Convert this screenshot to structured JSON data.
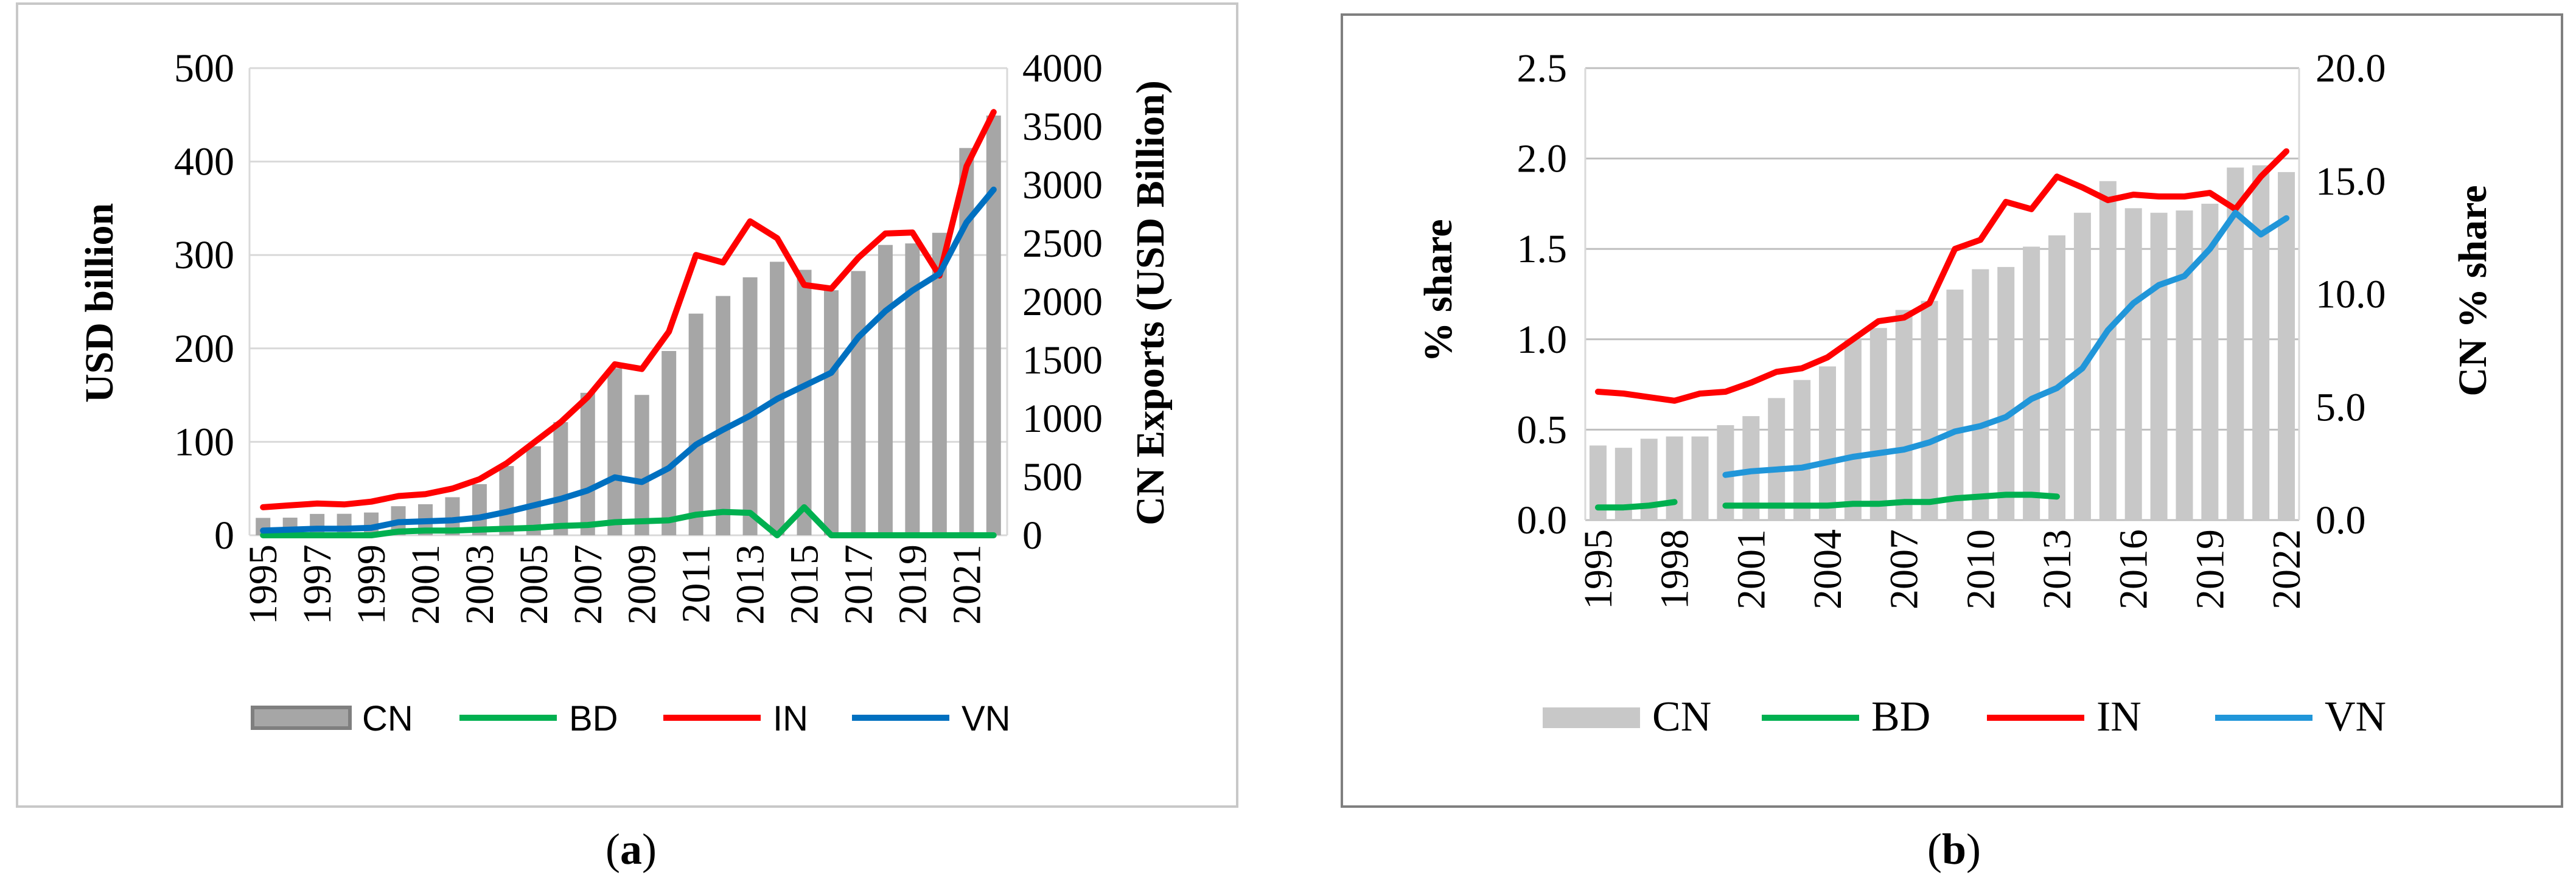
{
  "chart_data": [
    {
      "id": "a",
      "type": "bar",
      "caption_letter": "a",
      "years": [
        1995,
        1996,
        1997,
        1998,
        1999,
        2000,
        2001,
        2002,
        2003,
        2004,
        2005,
        2006,
        2007,
        2008,
        2009,
        2010,
        2011,
        2012,
        2013,
        2014,
        2015,
        2016,
        2017,
        2018,
        2019,
        2020,
        2021,
        2022
      ],
      "x_tick_labels": [
        "1995",
        "1997",
        "1999",
        "2001",
        "2003",
        "2005",
        "2007",
        "2009",
        "2011",
        "2013",
        "2015",
        "2017",
        "2019",
        "2021"
      ],
      "y_left": {
        "label": "USD billion",
        "ylim": [
          0,
          500
        ],
        "ticks": [
          "0",
          "100",
          "200",
          "300",
          "400",
          "500"
        ]
      },
      "y_right": {
        "label": "CN Exports (USD Billion)",
        "ylim": [
          0,
          4000
        ],
        "ticks": [
          "0",
          "500",
          "1000",
          "1500",
          "2000",
          "2500",
          "3000",
          "3500",
          "4000"
        ]
      },
      "bars": {
        "name": "CN",
        "axis": "right",
        "color": "#a6a6a6",
        "values": [
          149,
          151,
          183,
          184,
          195,
          249,
          266,
          326,
          438,
          593,
          762,
          969,
          1220,
          1430,
          1202,
          1578,
          1898,
          2049,
          2209,
          2342,
          2273,
          2098,
          2263,
          2486,
          2499,
          2590,
          3316,
          3594
        ]
      },
      "series": [
        {
          "name": "BD",
          "axis": "left",
          "color": "#00b050",
          "values": [
            0,
            0,
            0,
            0,
            0,
            4,
            5,
            5,
            6,
            7,
            8,
            10,
            11,
            14,
            15,
            16,
            22,
            25,
            24,
            0,
            30,
            0,
            0,
            0,
            0,
            0,
            0,
            0
          ]
        },
        {
          "name": "IN",
          "axis": "left",
          "color": "#ff0000",
          "values": [
            30,
            32,
            34,
            33,
            36,
            42,
            44,
            50,
            60,
            77,
            99,
            121,
            148,
            183,
            178,
            218,
            300,
            292,
            336,
            318,
            268,
            264,
            297,
            323,
            324,
            278,
            395,
            453
          ]
        },
        {
          "name": "VN",
          "axis": "left",
          "color": "#0070c0",
          "values": [
            5,
            6,
            7,
            7,
            8,
            14,
            15,
            16,
            19,
            25,
            32,
            39,
            48,
            62,
            57,
            72,
            97,
            113,
            128,
            146,
            160,
            174,
            212,
            240,
            262,
            280,
            335,
            370
          ]
        }
      ],
      "legend": [
        "CN",
        "BD",
        "IN",
        "VN"
      ]
    },
    {
      "id": "b",
      "type": "bar",
      "caption_letter": "b",
      "years": [
        1995,
        1996,
        1997,
        1998,
        1999,
        2000,
        2001,
        2002,
        2003,
        2004,
        2005,
        2006,
        2007,
        2008,
        2009,
        2010,
        2011,
        2012,
        2013,
        2014,
        2015,
        2016,
        2017,
        2018,
        2019,
        2020,
        2021,
        2022
      ],
      "x_tick_labels": [
        "1995",
        "1998",
        "2001",
        "2004",
        "2007",
        "2010",
        "2013",
        "2016",
        "2019",
        "2022"
      ],
      "y_left": {
        "label": "% share",
        "ylim": [
          0,
          2.5
        ],
        "ticks": [
          "0.0",
          "0.5",
          "1.0",
          "1.5",
          "2.0",
          "2.5"
        ]
      },
      "y_right": {
        "label": "CN % share",
        "ylim": [
          0,
          20
        ],
        "ticks": [
          "0.0",
          "5.0",
          "10.0",
          "15.0",
          "20.0"
        ]
      },
      "bars": {
        "name": "CN",
        "axis": "right",
        "color": "#c8c8c8",
        "values": [
          3.3,
          3.2,
          3.6,
          3.7,
          3.7,
          4.2,
          4.6,
          5.4,
          6.2,
          6.8,
          8.0,
          8.5,
          9.3,
          9.7,
          10.2,
          11.1,
          11.2,
          12.1,
          12.6,
          13.6,
          15.0,
          13.8,
          13.6,
          13.7,
          14.0,
          15.6,
          15.7,
          15.4
        ]
      },
      "series": [
        {
          "name": "BD",
          "axis": "left",
          "color": "#00b050",
          "values": [
            0.07,
            0.07,
            0.08,
            0.1,
            null,
            0.08,
            0.08,
            0.08,
            0.08,
            0.08,
            0.09,
            0.09,
            0.1,
            0.1,
            0.12,
            0.13,
            0.14,
            0.14,
            0.13,
            null,
            null,
            null,
            null,
            null,
            null,
            null,
            null,
            null
          ]
        },
        {
          "name": "IN",
          "axis": "left",
          "color": "#ff0000",
          "values": [
            0.71,
            0.7,
            0.68,
            0.66,
            0.7,
            0.71,
            0.76,
            0.82,
            0.84,
            0.9,
            1.0,
            1.1,
            1.12,
            1.2,
            1.5,
            1.55,
            1.76,
            1.72,
            1.9,
            1.84,
            1.77,
            1.8,
            1.79,
            1.79,
            1.81,
            1.72,
            1.9,
            2.04
          ]
        },
        {
          "name": "VN",
          "axis": "left",
          "color": "#2196d9",
          "values": [
            null,
            null,
            null,
            null,
            null,
            0.25,
            0.27,
            0.28,
            0.29,
            0.32,
            0.35,
            0.37,
            0.39,
            0.43,
            0.49,
            0.52,
            0.57,
            0.67,
            0.73,
            0.84,
            1.05,
            1.2,
            1.3,
            1.35,
            1.5,
            1.7,
            1.58,
            1.67
          ]
        }
      ],
      "legend": [
        "CN",
        "BD",
        "IN",
        "VN"
      ]
    }
  ]
}
